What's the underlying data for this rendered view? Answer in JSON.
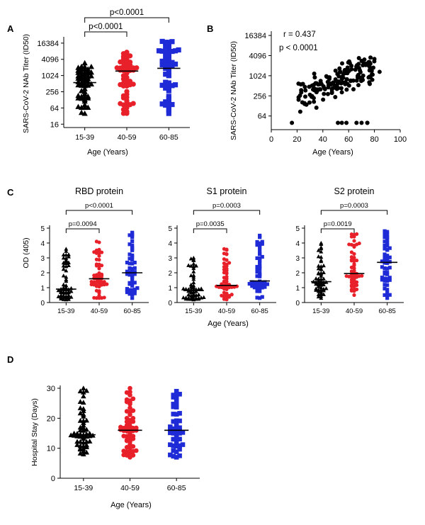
{
  "panels": {
    "A": {
      "label": "A",
      "ylabel": "SARS-CoV-2 NAb Titer (ID50)",
      "xlabel": "Age (Years)"
    },
    "B": {
      "label": "B",
      "ylabel": "SARS-CoV-2 NAb Titer (ID50)",
      "xlabel": "Age (Years)",
      "stat_r": "r = 0.437",
      "stat_p": "p < 0.0001"
    },
    "C": {
      "label": "C",
      "ylabel": "OD (405)",
      "xlabel": "Age (Years)"
    },
    "D": {
      "label": "D",
      "ylabel": "Hospital Stay (Days)",
      "xlabel": "Age (Years)"
    }
  },
  "colors": {
    "g1539": "#000000",
    "g4059": "#e8202a",
    "g6085": "#1f2bd6"
  },
  "chart_data": [
    {
      "id": "A",
      "type": "scatter",
      "title": "",
      "xlabel": "Age (Years)",
      "ylabel": "SARS-CoV-2 NAb Titer (ID50)",
      "yscale": "log2",
      "ylim": [
        12,
        22000
      ],
      "yticks": [
        16,
        64,
        256,
        1024,
        4096,
        16384
      ],
      "ytick_labels": [
        "16",
        "64",
        "256",
        "1024",
        "4096",
        "16384"
      ],
      "categories": [
        "15-39",
        "40-59",
        "60-85"
      ],
      "groups": [
        {
          "name": "15-39",
          "marker": "triangle",
          "n": 55,
          "min": 40,
          "max": 3000,
          "median": 560
        },
        {
          "name": "40-59",
          "marker": "circle",
          "n": 60,
          "min": 40,
          "max": 7500,
          "median": 1500
        },
        {
          "name": "60-85",
          "marker": "square",
          "n": 55,
          "min": 40,
          "max": 19000,
          "median": 1900
        }
      ],
      "comparisons": [
        {
          "from": "15-39",
          "to": "40-59",
          "label": "p<0.0001"
        },
        {
          "from": "15-39",
          "to": "60-85",
          "label": "p<0.0001"
        }
      ]
    },
    {
      "id": "B",
      "type": "scatter",
      "xlabel": "Age (Years)",
      "ylabel": "SARS-CoV-2 NAb Titer (ID50)",
      "xlim": [
        0,
        100
      ],
      "xticks": [
        0,
        20,
        40,
        60,
        80,
        100
      ],
      "yscale": "log2",
      "ylim": [
        25,
        22000
      ],
      "yticks": [
        64,
        256,
        1024,
        4096,
        16384
      ],
      "ytick_labels": [
        "64",
        "256",
        "1024",
        "4096",
        "16384"
      ],
      "annotations": [
        "r = 0.437",
        "p < 0.0001"
      ],
      "n": 170,
      "x_range": [
        15,
        85
      ],
      "y_range": [
        40,
        16000
      ]
    },
    {
      "id": "C1",
      "type": "scatter",
      "title": "RBD protein",
      "xlabel": "Age (Years)",
      "ylabel": "OD (405)",
      "ylim": [
        0,
        5
      ],
      "yticks": [
        0,
        1,
        2,
        3,
        4,
        5
      ],
      "ytick_labels": [
        "0",
        "1",
        "2",
        "3",
        "4",
        "5"
      ],
      "categories": [
        "15-39",
        "40-59",
        "60-85"
      ],
      "groups": [
        {
          "name": "15-39",
          "n": 55,
          "min": 0.2,
          "max": 3.6,
          "median": 0.9
        },
        {
          "name": "40-59",
          "n": 55,
          "min": 0.3,
          "max": 4.1,
          "median": 1.6
        },
        {
          "name": "60-85",
          "n": 55,
          "min": 0.3,
          "max": 4.7,
          "median": 2.0
        }
      ],
      "comparisons": [
        {
          "from": "15-39",
          "to": "40-59",
          "label": "p=0.0094"
        },
        {
          "from": "15-39",
          "to": "60-85",
          "label": "p<0.0001"
        }
      ]
    },
    {
      "id": "C2",
      "type": "scatter",
      "title": "S1 protein",
      "xlabel": "Age (Years)",
      "ylabel": "OD (405)",
      "ylim": [
        0,
        5
      ],
      "yticks": [
        0,
        1,
        2,
        3,
        4,
        5
      ],
      "ytick_labels": [
        "0",
        "1",
        "2",
        "3",
        "4",
        "5"
      ],
      "categories": [
        "15-39",
        "40-59",
        "60-85"
      ],
      "groups": [
        {
          "name": "15-39",
          "n": 55,
          "min": 0.2,
          "max": 3.0,
          "median": 0.8
        },
        {
          "name": "40-59",
          "n": 55,
          "min": 0.2,
          "max": 3.6,
          "median": 1.15
        },
        {
          "name": "60-85",
          "n": 55,
          "min": 0.3,
          "max": 4.5,
          "median": 1.45
        }
      ],
      "comparisons": [
        {
          "from": "15-39",
          "to": "40-59",
          "label": "p=0.0035"
        },
        {
          "from": "15-39",
          "to": "60-85",
          "label": "p=0.0003"
        }
      ]
    },
    {
      "id": "C3",
      "type": "scatter",
      "title": "S2 protein",
      "xlabel": "Age (Years)",
      "ylabel": "OD (405)",
      "ylim": [
        0,
        5
      ],
      "yticks": [
        0,
        1,
        2,
        3,
        4,
        5
      ],
      "ytick_labels": [
        "0",
        "1",
        "2",
        "3",
        "4",
        "5"
      ],
      "categories": [
        "15-39",
        "40-59",
        "60-85"
      ],
      "groups": [
        {
          "name": "15-39",
          "n": 55,
          "min": 0.3,
          "max": 4.0,
          "median": 1.4
        },
        {
          "name": "40-59",
          "n": 55,
          "min": 0.5,
          "max": 4.6,
          "median": 1.95
        },
        {
          "name": "60-85",
          "n": 55,
          "min": 0.3,
          "max": 4.8,
          "median": 2.7
        }
      ],
      "comparisons": [
        {
          "from": "15-39",
          "to": "40-59",
          "label": "p=0.0019"
        },
        {
          "from": "15-39",
          "to": "60-85",
          "label": "p=0.0003"
        }
      ]
    },
    {
      "id": "D",
      "type": "scatter",
      "xlabel": "Age (Years)",
      "ylabel": "Hospital Stay (Days)",
      "ylim": [
        0,
        30
      ],
      "yticks": [
        0,
        10,
        20,
        30
      ],
      "ytick_labels": [
        "0",
        "10",
        "20",
        "30"
      ],
      "categories": [
        "15-39",
        "40-59",
        "60-85"
      ],
      "groups": [
        {
          "name": "15-39",
          "n": 55,
          "min": 8,
          "max": 30,
          "median": 14.5
        },
        {
          "name": "40-59",
          "n": 60,
          "min": 7,
          "max": 30,
          "median": 16
        },
        {
          "name": "60-85",
          "n": 50,
          "min": 7,
          "max": 29,
          "median": 16
        }
      ]
    }
  ]
}
